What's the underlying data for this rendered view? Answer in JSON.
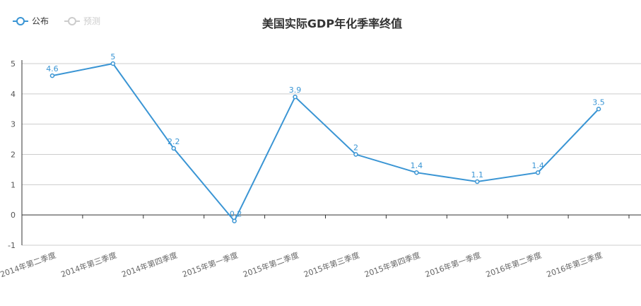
{
  "colors": {
    "series": "#3a95d4",
    "inactive": "#cccccc",
    "grid": "#cccccc",
    "axis": "#333333"
  },
  "legend": {
    "items": [
      {
        "label": "公布",
        "active": true,
        "icon": "circle-line-icon"
      },
      {
        "label": "预测",
        "active": false,
        "icon": "circle-line-icon"
      }
    ]
  },
  "chart_data": {
    "type": "line",
    "title": "美国实际GDP年化季率终值",
    "xlabel": "",
    "ylabel": "",
    "ylim": [
      -1,
      5
    ],
    "yticks": [
      -1,
      0,
      1,
      2,
      3,
      4,
      5
    ],
    "grid": true,
    "legend_position": "top-left",
    "categories": [
      "2014年第二季度",
      "2014年第三季度",
      "2014年第四季度",
      "2015年第一季度",
      "2015年第二季度",
      "2015年第三季度",
      "2015年第四季度",
      "2016年第一季度",
      "2016年第二季度",
      "2016年第三季度"
    ],
    "series": [
      {
        "name": "公布",
        "values": [
          4.6,
          5,
          2.2,
          -0.2,
          3.9,
          2,
          1.4,
          1.1,
          1.4,
          3.5
        ]
      }
    ]
  }
}
